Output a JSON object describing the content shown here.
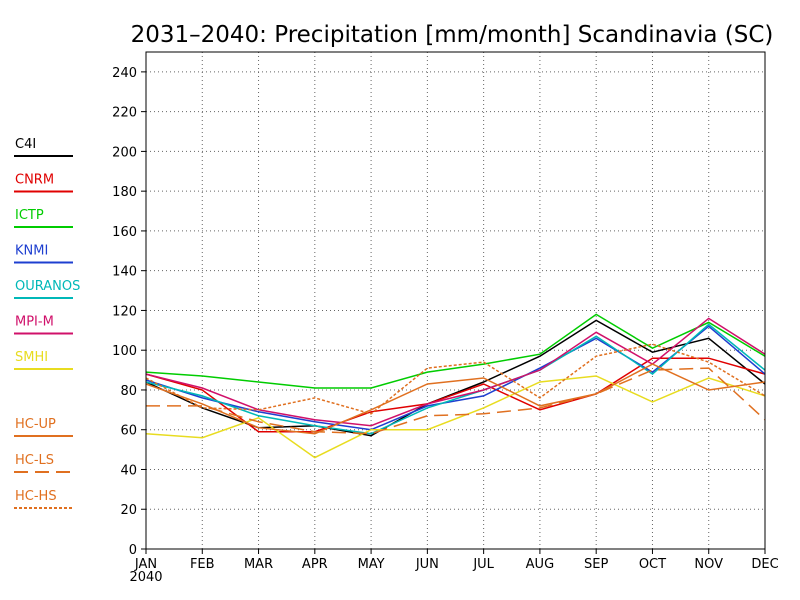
{
  "chart_data": {
    "type": "line",
    "title": "2031–2040: Precipitation [mm/month] Scandinavia (SC)",
    "xlabel": "",
    "ylabel": "",
    "categories": [
      "JAN",
      "FEB",
      "MAR",
      "APR",
      "MAY",
      "JUN",
      "JUL",
      "AUG",
      "SEP",
      "OCT",
      "NOV",
      "DEC"
    ],
    "x_sublabel": "2040",
    "ylim": [
      0,
      250
    ],
    "yticks": [
      0,
      20,
      40,
      60,
      80,
      100,
      120,
      140,
      160,
      180,
      200,
      220,
      240
    ],
    "grid": true,
    "legend_position": "left",
    "series": [
      {
        "name": "C4I",
        "color": "#000000",
        "dash": "solid",
        "values": [
          84,
          71,
          61,
          62,
          57,
          73,
          84,
          97,
          115,
          99,
          106,
          83
        ]
      },
      {
        "name": "CNRM",
        "color": "#e00000",
        "dash": "solid",
        "values": [
          88,
          80,
          59,
          59,
          69,
          73,
          83,
          70,
          78,
          96,
          96,
          88
        ]
      },
      {
        "name": "ICTP",
        "color": "#00cc00",
        "dash": "solid",
        "values": [
          89,
          87,
          84,
          81,
          81,
          89,
          93,
          98,
          118,
          101,
          114,
          97
        ]
      },
      {
        "name": "KNMI",
        "color": "#1e3fd0",
        "dash": "solid",
        "values": [
          85,
          76,
          69,
          64,
          60,
          72,
          77,
          91,
          106,
          89,
          112,
          88
        ]
      },
      {
        "name": "OURANOS",
        "color": "#00b8b8",
        "dash": "solid",
        "values": [
          84,
          77,
          67,
          62,
          58,
          71,
          80,
          90,
          107,
          88,
          113,
          90
        ]
      },
      {
        "name": "MPI-M",
        "color": "#d0106a",
        "dash": "solid",
        "values": [
          88,
          81,
          70,
          65,
          62,
          73,
          80,
          90,
          109,
          93,
          116,
          98
        ]
      },
      {
        "name": "SMHI",
        "color": "#e8dc20",
        "dash": "solid",
        "values": [
          58,
          56,
          66,
          46,
          60,
          60,
          71,
          84,
          87,
          74,
          86,
          77
        ]
      },
      {
        "name": "HC-UP",
        "color": "#e07020",
        "dash": "solid",
        "values": [
          83,
          73,
          61,
          58,
          70,
          83,
          86,
          72,
          78,
          93,
          80,
          84
        ]
      },
      {
        "name": "HC-LS",
        "color": "#e07020",
        "dash": "dashed",
        "values": [
          72,
          72,
          64,
          59,
          58,
          67,
          68,
          71,
          78,
          90,
          91,
          65
        ]
      },
      {
        "name": "HC-HS",
        "color": "#e07020",
        "dash": "dotted",
        "values": [
          86,
          71,
          70,
          76,
          68,
          91,
          94,
          76,
          97,
          103,
          94,
          77
        ]
      }
    ]
  }
}
